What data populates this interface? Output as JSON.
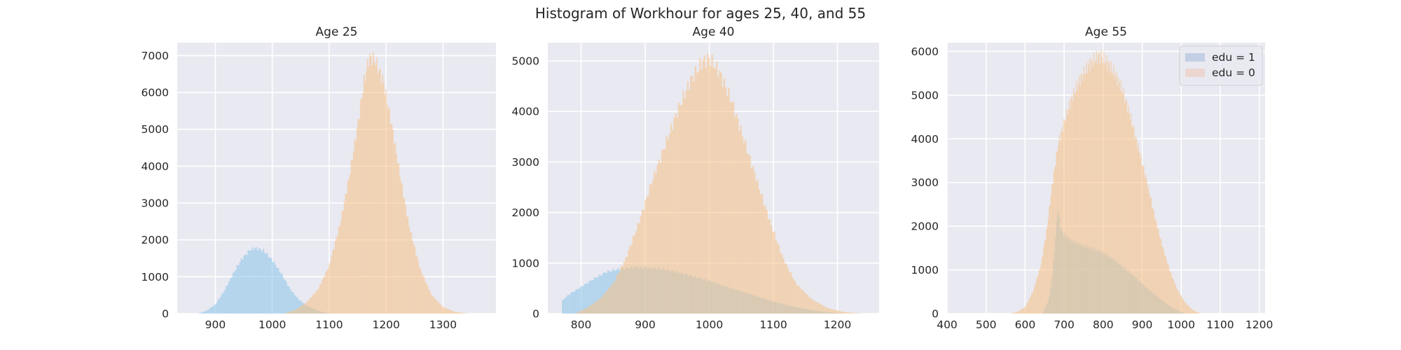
{
  "figure": {
    "title": "Histogram of Workhour for ages 25, 40, and 55"
  },
  "colors": {
    "edu1": "#8ec6ea",
    "edu0": "#f5c28a",
    "axes_bg": "#e9e9f1",
    "grid": "#ffffff"
  },
  "legend": {
    "location": "top-right",
    "items": [
      {
        "label": "edu = 1",
        "swatch_color": "#c3cfe4"
      },
      {
        "label": "edu = 0",
        "swatch_color": "#ebd6d0"
      }
    ]
  },
  "chart_data": [
    {
      "type": "histogram",
      "title": "Age 25",
      "xlabel": "",
      "ylabel": "",
      "xlim": [
        833,
        1393
      ],
      "ylim": [
        0,
        7350
      ],
      "xticks": [
        900,
        1000,
        1100,
        1200,
        1300
      ],
      "yticks": [
        0,
        1000,
        2000,
        3000,
        4000,
        5000,
        6000,
        7000
      ],
      "grid": true,
      "series": [
        {
          "key": "edu1",
          "bins": 100,
          "range": [
            870,
            1110
          ],
          "profile": [
            [
              870,
              0
            ],
            [
              885,
              80
            ],
            [
              900,
              250
            ],
            [
              915,
              600
            ],
            [
              930,
              1050
            ],
            [
              945,
              1450
            ],
            [
              960,
              1720
            ],
            [
              970,
              1780
            ],
            [
              985,
              1700
            ],
            [
              1000,
              1450
            ],
            [
              1015,
              1100
            ],
            [
              1030,
              700
            ],
            [
              1045,
              400
            ],
            [
              1060,
              220
            ],
            [
              1080,
              80
            ],
            [
              1095,
              20
            ],
            [
              1110,
              0
            ]
          ]
        },
        {
          "key": "edu0",
          "bins": 160,
          "range": [
            1020,
            1345
          ],
          "profile": [
            [
              1020,
              0
            ],
            [
              1040,
              100
            ],
            [
              1060,
              300
            ],
            [
              1080,
              650
            ],
            [
              1100,
              1300
            ],
            [
              1120,
              2500
            ],
            [
              1135,
              3700
            ],
            [
              1150,
              5100
            ],
            [
              1160,
              6200
            ],
            [
              1170,
              6950
            ],
            [
              1180,
              6900
            ],
            [
              1195,
              6300
            ],
            [
              1210,
              5100
            ],
            [
              1225,
              3700
            ],
            [
              1240,
              2400
            ],
            [
              1260,
              1200
            ],
            [
              1280,
              500
            ],
            [
              1300,
              180
            ],
            [
              1320,
              50
            ],
            [
              1345,
              0
            ]
          ]
        }
      ]
    },
    {
      "type": "histogram",
      "title": "Age 40",
      "xlabel": "",
      "ylabel": "",
      "xlim": [
        748,
        1265
      ],
      "ylim": [
        0,
        5360
      ],
      "xticks": [
        800,
        900,
        1000,
        1100,
        1200
      ],
      "yticks": [
        0,
        1000,
        2000,
        3000,
        4000,
        5000
      ],
      "grid": true,
      "series": [
        {
          "key": "edu1",
          "bins": 170,
          "range": [
            770,
            1215
          ],
          "profile": [
            [
              770,
              250
            ],
            [
              780,
              370
            ],
            [
              800,
              530
            ],
            [
              820,
              690
            ],
            [
              840,
              830
            ],
            [
              860,
              880
            ],
            [
              880,
              920
            ],
            [
              900,
              920
            ],
            [
              920,
              890
            ],
            [
              940,
              850
            ],
            [
              960,
              790
            ],
            [
              980,
              720
            ],
            [
              1000,
              650
            ],
            [
              1020,
              560
            ],
            [
              1040,
              480
            ],
            [
              1060,
              400
            ],
            [
              1080,
              320
            ],
            [
              1100,
              240
            ],
            [
              1130,
              140
            ],
            [
              1160,
              70
            ],
            [
              1190,
              20
            ],
            [
              1215,
              0
            ]
          ]
        },
        {
          "key": "edu0",
          "bins": 190,
          "range": [
            790,
            1240
          ],
          "profile": [
            [
              790,
              0
            ],
            [
              810,
              120
            ],
            [
              830,
              300
            ],
            [
              850,
              600
            ],
            [
              870,
              1100
            ],
            [
              890,
              1800
            ],
            [
              910,
              2600
            ],
            [
              930,
              3300
            ],
            [
              950,
              4000
            ],
            [
              970,
              4600
            ],
            [
              990,
              5000
            ],
            [
              1000,
              5050
            ],
            [
              1015,
              4800
            ],
            [
              1035,
              4200
            ],
            [
              1055,
              3400
            ],
            [
              1075,
              2600
            ],
            [
              1095,
              1800
            ],
            [
              1115,
              1100
            ],
            [
              1135,
              600
            ],
            [
              1160,
              280
            ],
            [
              1185,
              110
            ],
            [
              1210,
              30
            ],
            [
              1240,
              0
            ]
          ]
        }
      ]
    },
    {
      "type": "histogram",
      "title": "Age 55",
      "xlabel": "",
      "ylabel": "",
      "xlim": [
        400,
        1215
      ],
      "ylim": [
        0,
        6200
      ],
      "xticks": [
        400,
        500,
        600,
        700,
        800,
        900,
        1000,
        1100,
        1200
      ],
      "yticks": [
        0,
        1000,
        2000,
        3000,
        4000,
        5000,
        6000
      ],
      "grid": true,
      "series": [
        {
          "key": "edu1",
          "bins": 140,
          "range": [
            645,
            1010
          ],
          "profile": [
            [
              645,
              0
            ],
            [
              660,
              300
            ],
            [
              670,
              900
            ],
            [
              678,
              1800
            ],
            [
              684,
              2450
            ],
            [
              690,
              2000
            ],
            [
              700,
              1800
            ],
            [
              720,
              1650
            ],
            [
              740,
              1580
            ],
            [
              760,
              1520
            ],
            [
              780,
              1470
            ],
            [
              800,
              1390
            ],
            [
              820,
              1280
            ],
            [
              840,
              1150
            ],
            [
              860,
              1000
            ],
            [
              880,
              850
            ],
            [
              900,
              680
            ],
            [
              920,
              520
            ],
            [
              940,
              380
            ],
            [
              960,
              240
            ],
            [
              980,
              120
            ],
            [
              1000,
              40
            ],
            [
              1010,
              0
            ]
          ]
        },
        {
          "key": "edu0",
          "bins": 210,
          "range": [
            560,
            1050
          ],
          "profile": [
            [
              560,
              0
            ],
            [
              580,
              40
            ],
            [
              600,
              150
            ],
            [
              620,
              500
            ],
            [
              640,
              1100
            ],
            [
              655,
              1900
            ],
            [
              670,
              3000
            ],
            [
              685,
              3900
            ],
            [
              700,
              4400
            ],
            [
              720,
              4950
            ],
            [
              740,
              5350
            ],
            [
              760,
              5650
            ],
            [
              780,
              5850
            ],
            [
              795,
              5900
            ],
            [
              810,
              5750
            ],
            [
              830,
              5500
            ],
            [
              850,
              5100
            ],
            [
              870,
              4500
            ],
            [
              890,
              3800
            ],
            [
              910,
              3100
            ],
            [
              930,
              2300
            ],
            [
              950,
              1600
            ],
            [
              970,
              1000
            ],
            [
              990,
              550
            ],
            [
              1010,
              250
            ],
            [
              1030,
              80
            ],
            [
              1050,
              0
            ]
          ]
        }
      ]
    }
  ]
}
